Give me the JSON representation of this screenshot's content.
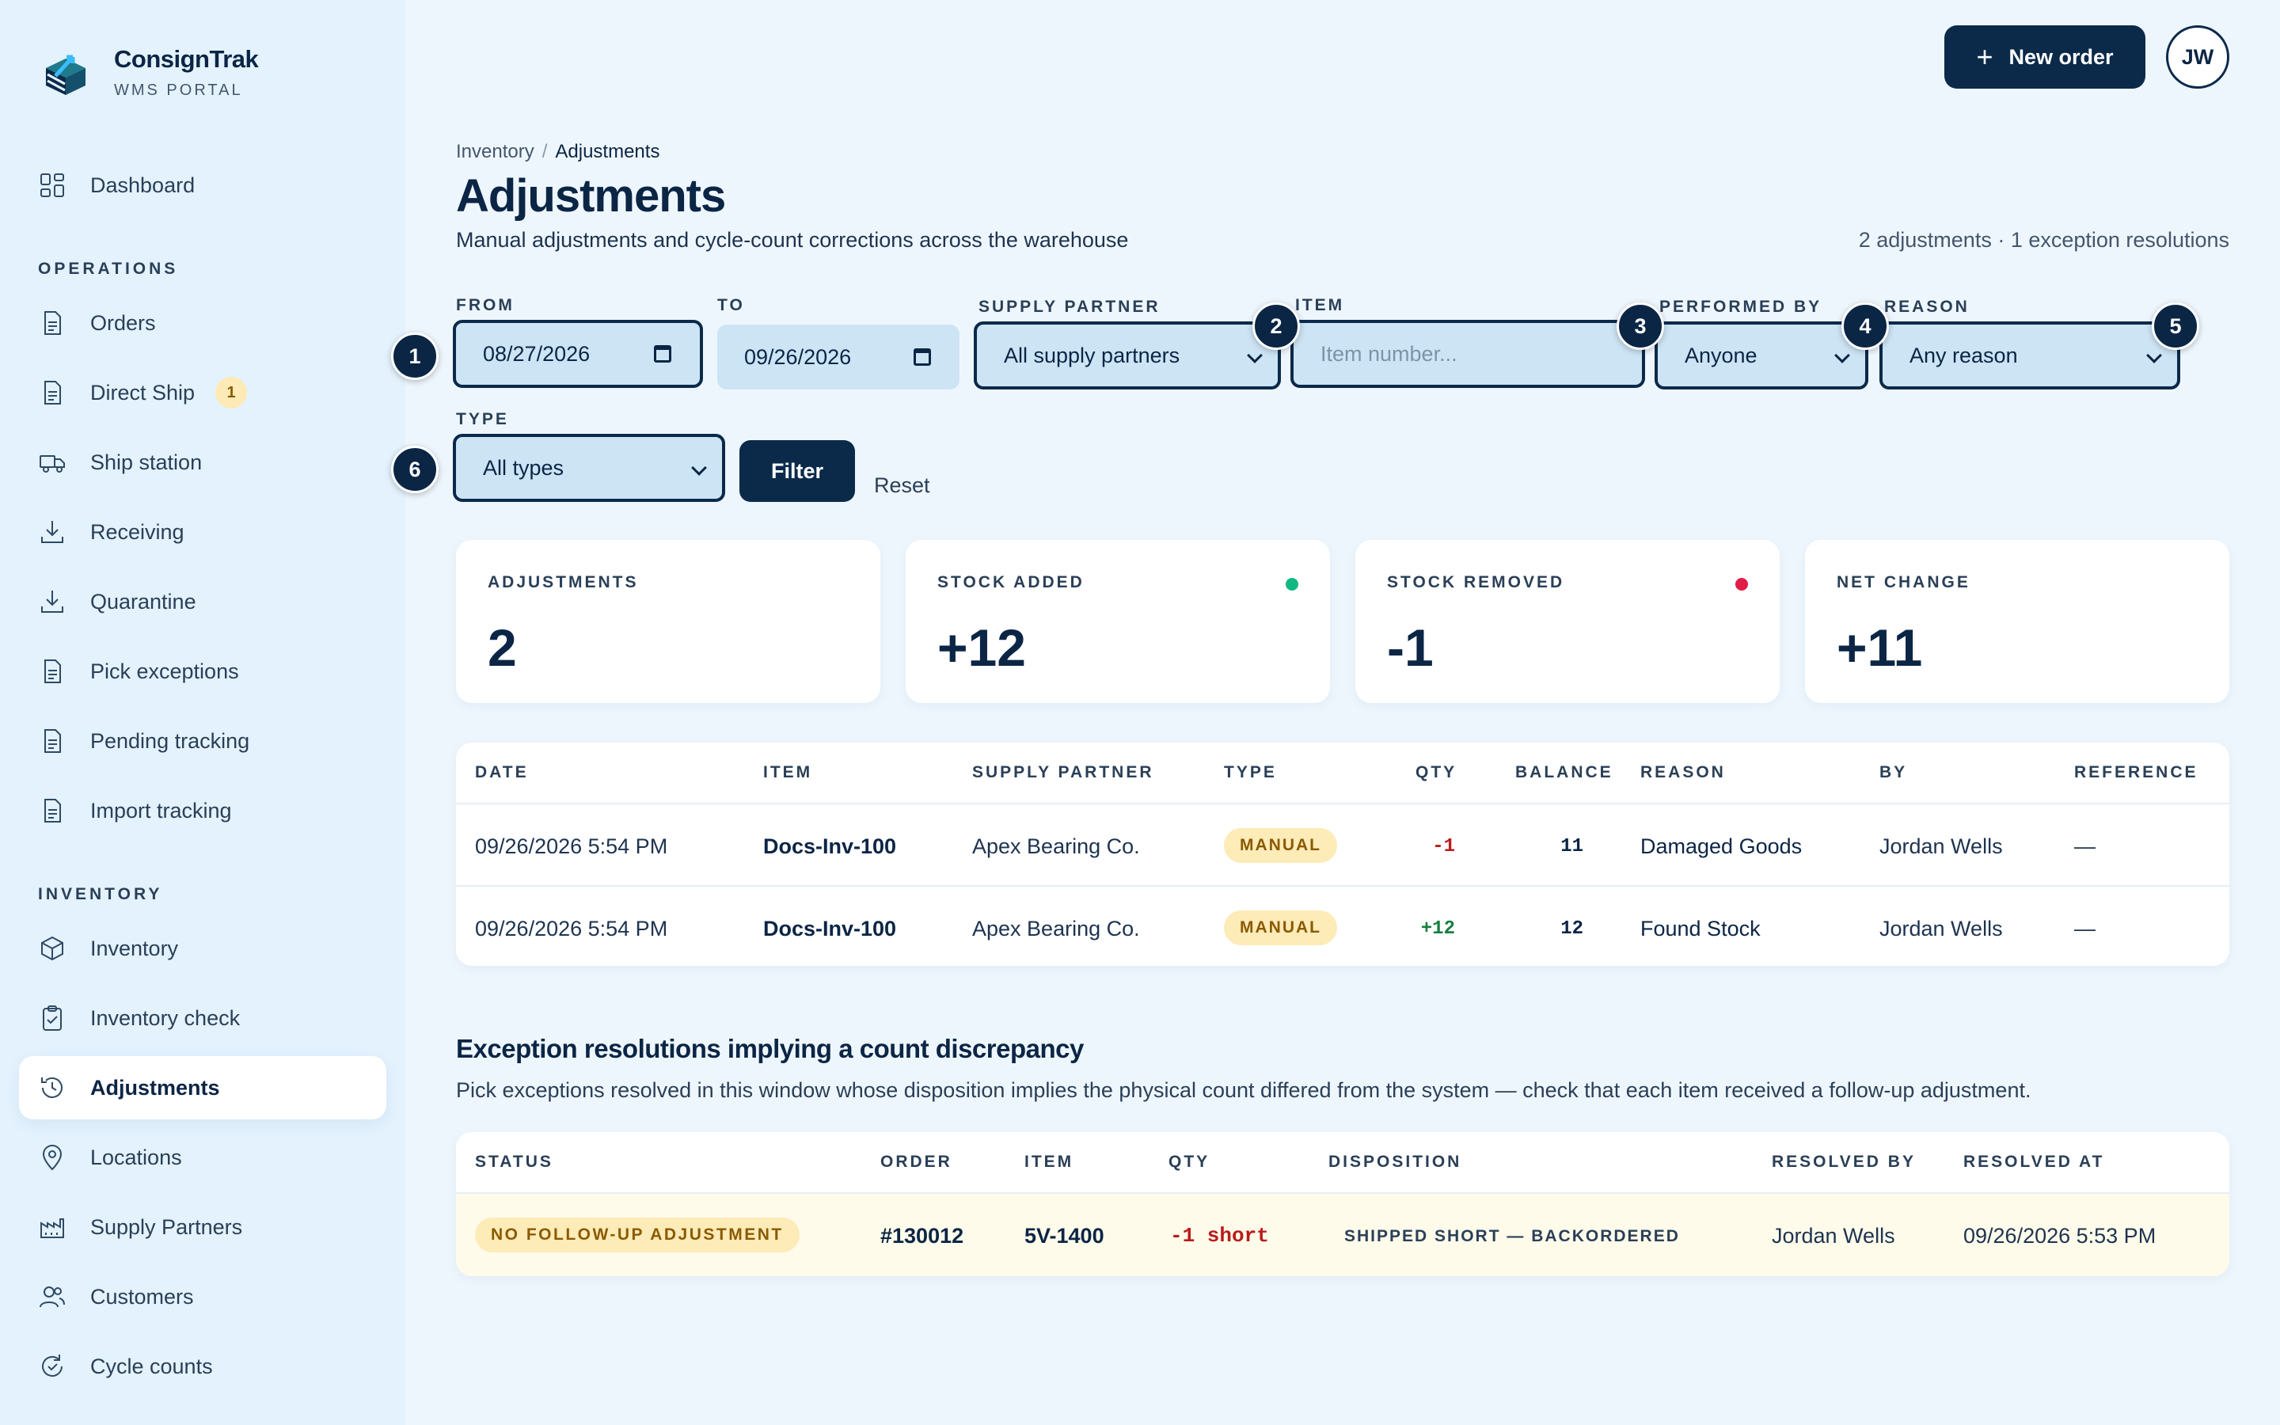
{
  "brand": {
    "name": "ConsignTrak",
    "subtitle": "WMS PORTAL"
  },
  "sidebar": {
    "dashboard": "Dashboard",
    "operations_title": "OPERATIONS",
    "operations": [
      {
        "label": "Orders",
        "icon": "document-icon"
      },
      {
        "label": "Direct Ship",
        "icon": "document-icon",
        "badge": "1"
      },
      {
        "label": "Ship station",
        "icon": "truck-icon"
      },
      {
        "label": "Receiving",
        "icon": "download-icon"
      },
      {
        "label": "Quarantine",
        "icon": "download-icon"
      },
      {
        "label": "Pick exceptions",
        "icon": "document-icon"
      },
      {
        "label": "Pending tracking",
        "icon": "document-icon"
      },
      {
        "label": "Import tracking",
        "icon": "document-icon"
      }
    ],
    "inventory_title": "INVENTORY",
    "inventory": [
      {
        "label": "Inventory",
        "icon": "box-icon"
      },
      {
        "label": "Inventory check",
        "icon": "clipboard-icon"
      },
      {
        "label": "Adjustments",
        "icon": "history-icon",
        "active": true
      },
      {
        "label": "Locations",
        "icon": "pin-icon"
      },
      {
        "label": "Supply Partners",
        "icon": "factory-icon"
      },
      {
        "label": "Customers",
        "icon": "users-icon"
      },
      {
        "label": "Cycle counts",
        "icon": "refresh-icon"
      }
    ]
  },
  "topbar": {
    "new_order": "New order",
    "avatar": "JW"
  },
  "header": {
    "breadcrumb_parent": "Inventory",
    "breadcrumb_sep": "/",
    "breadcrumb_current": "Adjustments",
    "title": "Adjustments",
    "subtitle": "Manual adjustments and cycle-count corrections across the warehouse",
    "summary": "2 adjustments · 1 exception resolutions"
  },
  "filters": {
    "from": {
      "label": "FROM",
      "value": "08/27/2026"
    },
    "to": {
      "label": "TO",
      "value": "09/26/2026"
    },
    "supply_partner": {
      "label": "SUPPLY PARTNER",
      "value": "All supply partners"
    },
    "item": {
      "label": "ITEM",
      "placeholder": "Item number..."
    },
    "performed_by": {
      "label": "PERFORMED BY",
      "value": "Anyone"
    },
    "reason": {
      "label": "REASON",
      "value": "Any reason"
    },
    "type": {
      "label": "TYPE",
      "value": "All types"
    },
    "filter_button": "Filter",
    "reset": "Reset",
    "markers": [
      "1",
      "2",
      "3",
      "4",
      "5",
      "6"
    ]
  },
  "stats": [
    {
      "label": "ADJUSTMENTS",
      "value": "2"
    },
    {
      "label": "STOCK ADDED",
      "value": "+12",
      "dot": "#10b981"
    },
    {
      "label": "STOCK REMOVED",
      "value": "-1",
      "dot": "#e11d48"
    },
    {
      "label": "NET CHANGE",
      "value": "+11"
    }
  ],
  "adjustments_table": {
    "headers": [
      "DATE",
      "ITEM",
      "SUPPLY PARTNER",
      "TYPE",
      "QTY",
      "BALANCE",
      "REASON",
      "BY",
      "REFERENCE"
    ],
    "rows": [
      {
        "date": "09/26/2026 5:54 PM",
        "item": "Docs-Inv-100",
        "partner": "Apex Bearing Co.",
        "type": "MANUAL",
        "qty": "-1",
        "balance": "11",
        "reason": "Damaged Goods",
        "by": "Jordan Wells",
        "reference": "—"
      },
      {
        "date": "09/26/2026 5:54 PM",
        "item": "Docs-Inv-100",
        "partner": "Apex Bearing Co.",
        "type": "MANUAL",
        "qty": "+12",
        "balance": "12",
        "reason": "Found Stock",
        "by": "Jordan Wells",
        "reference": "—"
      }
    ]
  },
  "exceptions": {
    "title": "Exception resolutions implying a count discrepancy",
    "subtitle": "Pick exceptions resolved in this window whose disposition implies the physical count differed from the system — check that each item received a follow-up adjustment.",
    "headers": [
      "STATUS",
      "ORDER",
      "ITEM",
      "QTY",
      "DISPOSITION",
      "RESOLVED BY",
      "RESOLVED AT"
    ],
    "rows": [
      {
        "status": "NO FOLLOW-UP ADJUSTMENT",
        "order": "#130012",
        "item": "5V-1400",
        "qty": "-1 short",
        "disposition": "SHIPPED SHORT — BACKORDERED",
        "resolved_by": "Jordan Wells",
        "resolved_at": "09/26/2026 5:53 PM"
      }
    ]
  },
  "colors": {
    "navy": "#0b2a4a",
    "positive": "#15803d",
    "negative": "#b91c1c",
    "pill": "#fdebb8",
    "highlight_row": "#fffbeb"
  }
}
